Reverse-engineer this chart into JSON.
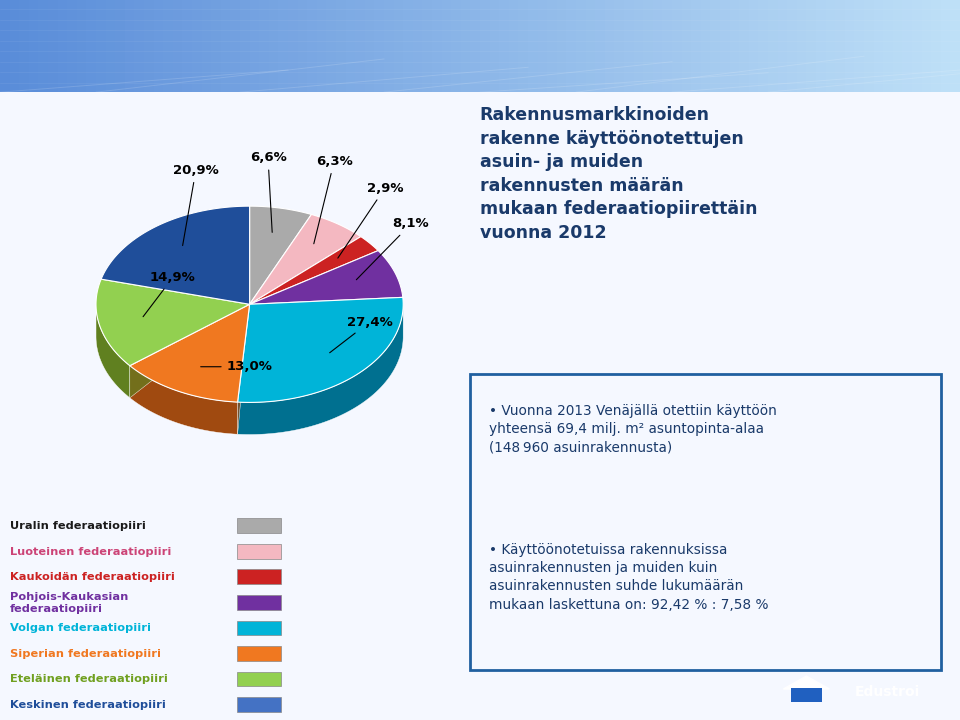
{
  "title": "Rakennusmarkkinoiden\nrakenne käyttöönotettujen\nasuin- ja muiden\nrakennusten määrän\nmukaan federaatiopiirettäin\nvuonna 2012",
  "slices": [
    {
      "label": "Uralin federaatiopiiri",
      "value": 6.6,
      "color": "#aaaaaa",
      "dark_color": "#777777",
      "text_color": "#1a1a1a"
    },
    {
      "label": "Luoteinen federaatiopiiri",
      "value": 6.3,
      "color": "#f4b8c1",
      "dark_color": "#c07080",
      "text_color": "#cc4477"
    },
    {
      "label": "Kaukoidän federaatiopiiri",
      "value": 2.9,
      "color": "#cc2222",
      "dark_color": "#881111",
      "text_color": "#cc2222"
    },
    {
      "label": "Pohjois-Kaukasian federaatiopiiri",
      "value": 8.1,
      "color": "#7030a0",
      "dark_color": "#4a1070",
      "text_color": "#7030a0"
    },
    {
      "label": "Volgan federaatiopiiri",
      "value": 27.4,
      "color": "#00b4d8",
      "dark_color": "#007090",
      "text_color": "#00b4d8"
    },
    {
      "label": "Siperian federaatiopiiri",
      "value": 13.0,
      "color": "#f07820",
      "dark_color": "#a04a10",
      "text_color": "#f07820"
    },
    {
      "label": "Eteläinen federaatiopiiri",
      "value": 14.9,
      "color": "#92d050",
      "dark_color": "#608020",
      "text_color": "#70a020"
    },
    {
      "label": "Keskinen federaatiopiiri",
      "value": 20.9,
      "color": "#1f4e9a",
      "dark_color": "#0a2060",
      "text_color": "#1f4e9a"
    }
  ],
  "pct_labels": [
    "6,6%",
    "6,3%",
    "2,9%",
    "8,1%",
    "27,4%",
    "13,0%",
    "14,9%",
    "20,9%"
  ],
  "bullet1_prefix": "• Vuonna 2013 Venäjällä otettiin käyttöön yhteensä 69,4 milj. m",
  "bullet1_super": "2",
  "bullet1_suffix": " asuntopinta-alaa\n(148 960 asuinrakennusta)",
  "bullet2": "• Käyttöönotetuissa rakennuksissa asuinrakennusten ja muiden kuin\nasuinrakennusten suhde lukumäärän\nmukaan laskettuna on: 92,42 % : 7,58 %",
  "start_angle": 90,
  "depth": 0.18
}
